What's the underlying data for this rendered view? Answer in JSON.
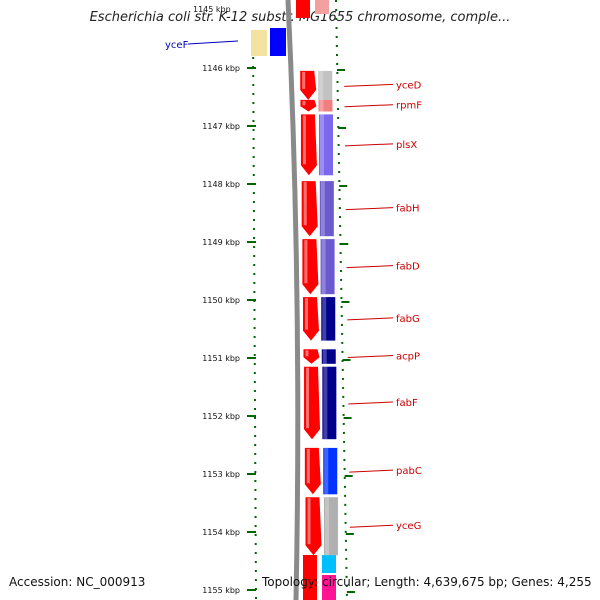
{
  "title": "Escherichia coli str. K-12 substr. MG1655 chromosome, comple...",
  "footer": {
    "accession": "Accession: NC_000913",
    "topology": "Topology: circular; Length: 4,639,675 bp; Genes: 4,255"
  },
  "ruler": {
    "ticks": [
      {
        "label": "1146 kbp",
        "y": 1146
      },
      {
        "label": "1147 kbp",
        "y": 1147
      },
      {
        "label": "1148 kbp",
        "y": 1148
      },
      {
        "label": "1149 kbp",
        "y": 1149
      },
      {
        "label": "1150 kbp",
        "y": 1150
      },
      {
        "label": "1151 kbp",
        "y": 1151
      },
      {
        "label": "1152 kbp",
        "y": 1152
      },
      {
        "label": "1153 kbp",
        "y": 1153
      },
      {
        "label": "1154 kbp",
        "y": 1154
      },
      {
        "label": "1155 kbp",
        "y": 1155
      }
    ]
  },
  "genes": [
    {
      "label": "yceD",
      "start": 1146.05,
      "end": 1146.55,
      "strand": "+",
      "cog_color": "#c2c2c2"
    },
    {
      "label": "rpmF",
      "start": 1146.55,
      "end": 1146.75,
      "strand": "+",
      "cog_color": "#f08080"
    },
    {
      "label": "plsX",
      "start": 1146.8,
      "end": 1147.85,
      "strand": "+",
      "cog_color": "#7b68ee"
    },
    {
      "label": "fabH",
      "start": 1147.95,
      "end": 1148.9,
      "strand": "+",
      "cog_color": "#6a5acd"
    },
    {
      "label": "fabD",
      "start": 1148.95,
      "end": 1149.9,
      "strand": "+",
      "cog_color": "#6a5acd"
    },
    {
      "label": "fabG",
      "start": 1149.95,
      "end": 1150.7,
      "strand": "+",
      "cog_color": "#00008b"
    },
    {
      "label": "acpP",
      "start": 1150.85,
      "end": 1151.1,
      "strand": "+",
      "cog_color": "#00008b"
    },
    {
      "label": "fabF",
      "start": 1151.15,
      "end": 1152.4,
      "strand": "+",
      "cog_color": "#00008b"
    },
    {
      "label": "pabC",
      "start": 1152.55,
      "end": 1153.35,
      "strand": "+",
      "cog_color": "#0033ff"
    },
    {
      "label": "yceG",
      "start": 1153.4,
      "end": 1154.4,
      "strand": "+",
      "cog_color": "#b0b0b0"
    }
  ],
  "left_gene": {
    "label": "yceF"
  },
  "colors": {
    "gene_red": "#ff0000",
    "ruler_green": "#006600",
    "backbone": "#777777",
    "label_red": "#cc0000",
    "label_blue": "#0000bb"
  }
}
